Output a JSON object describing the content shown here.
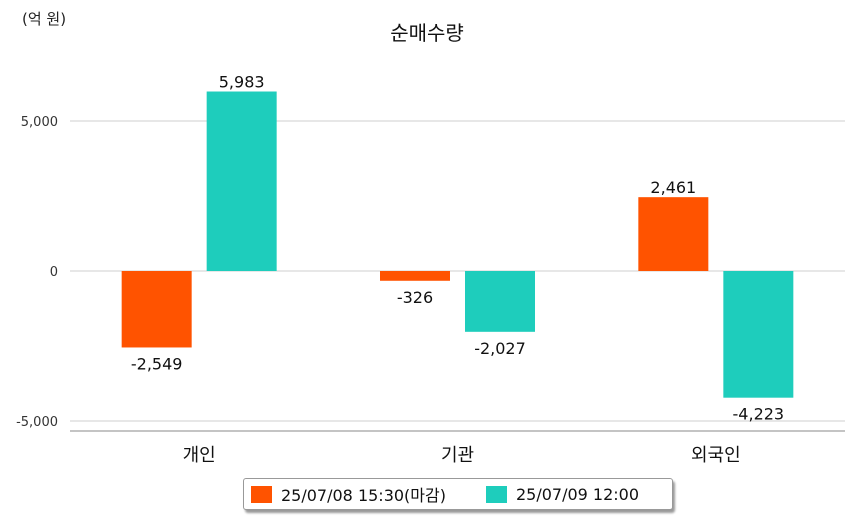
{
  "chart_data": {
    "type": "bar",
    "title": "순매수량",
    "unit_label": "(억 원)",
    "categories": [
      "개인",
      "기관",
      "외국인"
    ],
    "series": [
      {
        "name": "25/07/08 15:30(마감)",
        "values": [
          -2549,
          -326,
          2461
        ],
        "color": "#ff5300"
      },
      {
        "name": "25/07/09 12:00",
        "values": [
          5983,
          -2027,
          -4223
        ],
        "color": "#1ecdbc"
      }
    ],
    "data_labels": [
      [
        "-2,549",
        "-326",
        "2,461"
      ],
      [
        "5,983",
        "-2,027",
        "-4,223"
      ]
    ],
    "yticks": [
      5000,
      0,
      -5000
    ],
    "ytick_labels": [
      "5,000",
      "0",
      "-5,000"
    ],
    "ylim": [
      -5200,
      6500
    ],
    "grid": true,
    "legend_position": "bottom"
  }
}
